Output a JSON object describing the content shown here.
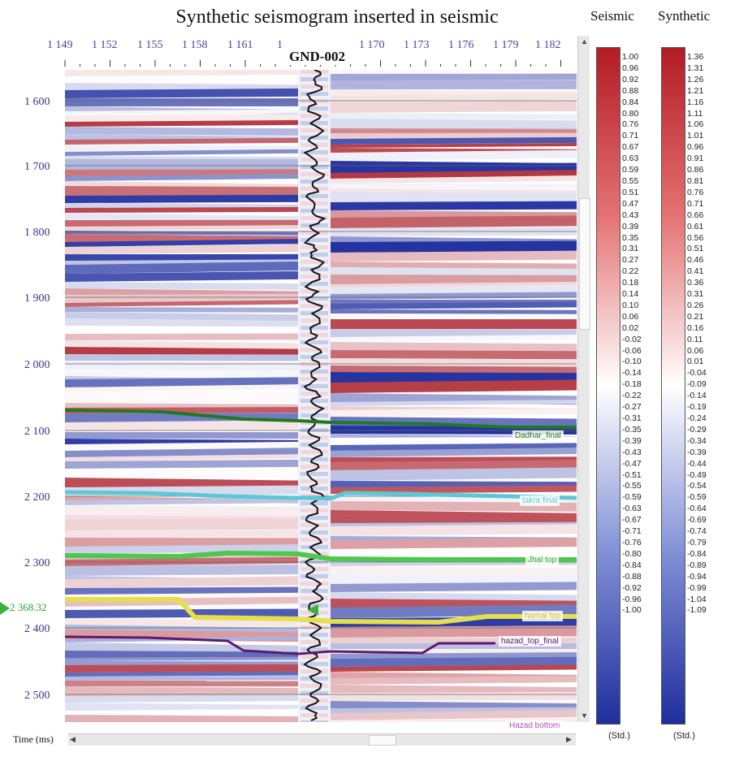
{
  "title": "Synthetic seismogram inserted in seismic",
  "well_name": "GND-002",
  "trace_labels": [
    "1 149",
    "1 152",
    "1 155",
    "1 158",
    "1 161",
    "1",
    "1 170",
    "1 173",
    "1 176",
    "1 179",
    "1 182"
  ],
  "time_axis": {
    "unit_label": "Time (ms)",
    "labels": [
      "1 600",
      "1 700",
      "1 800",
      "1 900",
      "2 000",
      "2 100",
      "2 200",
      "2 300",
      "2 400",
      "2 500"
    ],
    "pick_value": "2 368.32"
  },
  "horizons": [
    {
      "label": "Dadhar_final",
      "color": "#1f7a1f"
    },
    {
      "label": "takra final",
      "color": "#5bc8d6"
    },
    {
      "label": "Jhal top",
      "color": "#4cc94c"
    },
    {
      "label": "harnai top",
      "color": "#e6df4a"
    },
    {
      "label": "hazad_top_final",
      "color": "#5b1a6e"
    },
    {
      "label": "Hazad bottom",
      "color": "#b44ab8"
    }
  ],
  "colorbars": {
    "seismic": {
      "title": "Seismic",
      "ticks": [
        "1.00",
        "0.96",
        "0.92",
        "0.88",
        "0.84",
        "0.80",
        "0.76",
        "0.71",
        "0.67",
        "0.63",
        "0.59",
        "0.55",
        "0.51",
        "0.47",
        "0.43",
        "0.39",
        "0.35",
        "0.31",
        "0.27",
        "0.22",
        "0.18",
        "0.14",
        "0.10",
        "0.06",
        "0.02",
        "-0.02",
        "-0.06",
        "-0.10",
        "-0.14",
        "-0.18",
        "-0.22",
        "-0.27",
        "-0.31",
        "-0.35",
        "-0.39",
        "-0.43",
        "-0.47",
        "-0.51",
        "-0.55",
        "-0.59",
        "-0.63",
        "-0.67",
        "-0.71",
        "-0.76",
        "-0.80",
        "-0.84",
        "-0.88",
        "-0.92",
        "-0.96",
        "-1.00"
      ],
      "unit": "(Std.)"
    },
    "synthetic": {
      "title": "Synthetic",
      "ticks": [
        "1.36",
        "1.31",
        "1.26",
        "1.21",
        "1.16",
        "1.11",
        "1.06",
        "1.01",
        "0.96",
        "0.91",
        "0.86",
        "0.81",
        "0.76",
        "0.71",
        "0.66",
        "0.61",
        "0.56",
        "0.51",
        "0.46",
        "0.41",
        "0.36",
        "0.31",
        "0.26",
        "0.21",
        "0.16",
        "0.11",
        "0.06",
        "0.01",
        "-0.04",
        "-0.09",
        "-0.14",
        "-0.19",
        "-0.24",
        "-0.29",
        "-0.34",
        "-0.39",
        "-0.44",
        "-0.49",
        "-0.54",
        "-0.59",
        "-0.64",
        "-0.69",
        "-0.74",
        "-0.79",
        "-0.84",
        "-0.89",
        "-0.94",
        "-0.99",
        "-1.04",
        "-1.09"
      ],
      "unit": "(Std.)"
    }
  },
  "colors": {
    "positive": "#b31b24",
    "negative": "#1f2e9c",
    "neutral": "#ffffff"
  }
}
